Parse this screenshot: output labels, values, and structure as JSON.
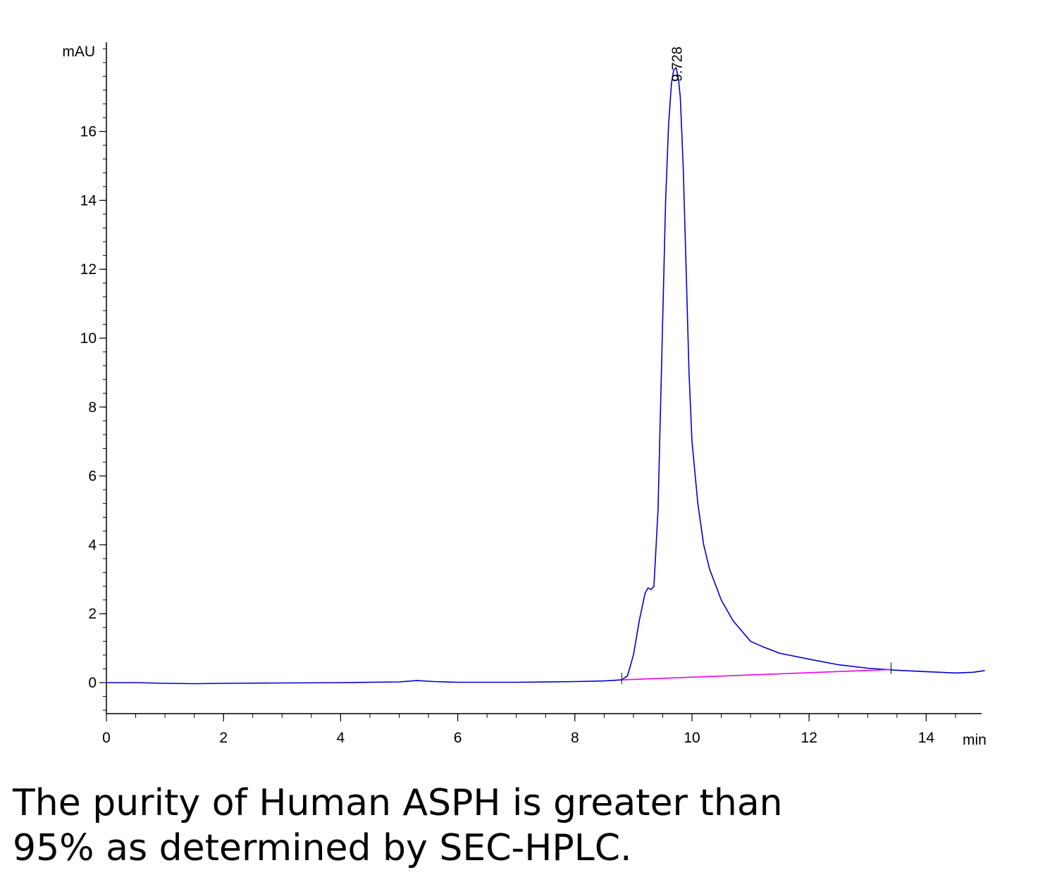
{
  "chart_data": {
    "type": "line",
    "title": "",
    "xlabel": "min",
    "ylabel": "mAU",
    "xlim": [
      0,
      15
    ],
    "ylim": [
      -0.9,
      18.6
    ],
    "x_ticks": [
      0,
      2,
      4,
      6,
      8,
      10,
      12,
      14
    ],
    "y_ticks": [
      0,
      2,
      4,
      6,
      8,
      10,
      12,
      14,
      16
    ],
    "grid": false,
    "series": [
      {
        "name": "",
        "color": "#0000cc",
        "x": [
          0,
          0.5,
          1.0,
          1.5,
          2.0,
          3.0,
          4.0,
          5.0,
          5.3,
          5.6,
          6.0,
          7.0,
          8.0,
          8.5,
          8.8,
          8.9,
          9.0,
          9.1,
          9.2,
          9.25,
          9.3,
          9.35,
          9.42,
          9.5,
          9.55,
          9.6,
          9.65,
          9.69,
          9.73,
          9.77,
          9.8,
          9.85,
          9.9,
          9.95,
          10.0,
          10.1,
          10.2,
          10.3,
          10.5,
          10.7,
          11.0,
          11.2,
          11.5,
          12.0,
          12.5,
          13.0,
          13.5,
          14.0,
          14.5,
          14.8,
          15.0
        ],
        "y": [
          0,
          0,
          -0.02,
          -0.03,
          -0.02,
          -0.01,
          0.0,
          0.02,
          0.06,
          0.03,
          0.01,
          0.01,
          0.03,
          0.05,
          0.08,
          0.2,
          0.8,
          1.8,
          2.6,
          2.75,
          2.7,
          2.8,
          5.0,
          10.5,
          14.0,
          16.2,
          17.4,
          17.8,
          17.85,
          17.5,
          17.0,
          15.0,
          12.0,
          9.0,
          7.0,
          5.2,
          4.0,
          3.3,
          2.4,
          1.8,
          1.2,
          1.05,
          0.85,
          0.68,
          0.52,
          0.42,
          0.36,
          0.32,
          0.28,
          0.3,
          0.35
        ]
      },
      {
        "name": "",
        "color": "#ee00ee",
        "x": [
          8.8,
          13.4
        ],
        "y": [
          0.08,
          0.38
        ]
      }
    ],
    "annotations": [
      {
        "text": "9.728",
        "x": 9.728,
        "y": 17.85
      }
    ]
  },
  "caption": {
    "line1": "The purity of Human ASPH is greater than",
    "line2": "95% as determined by SEC-HPLC."
  }
}
